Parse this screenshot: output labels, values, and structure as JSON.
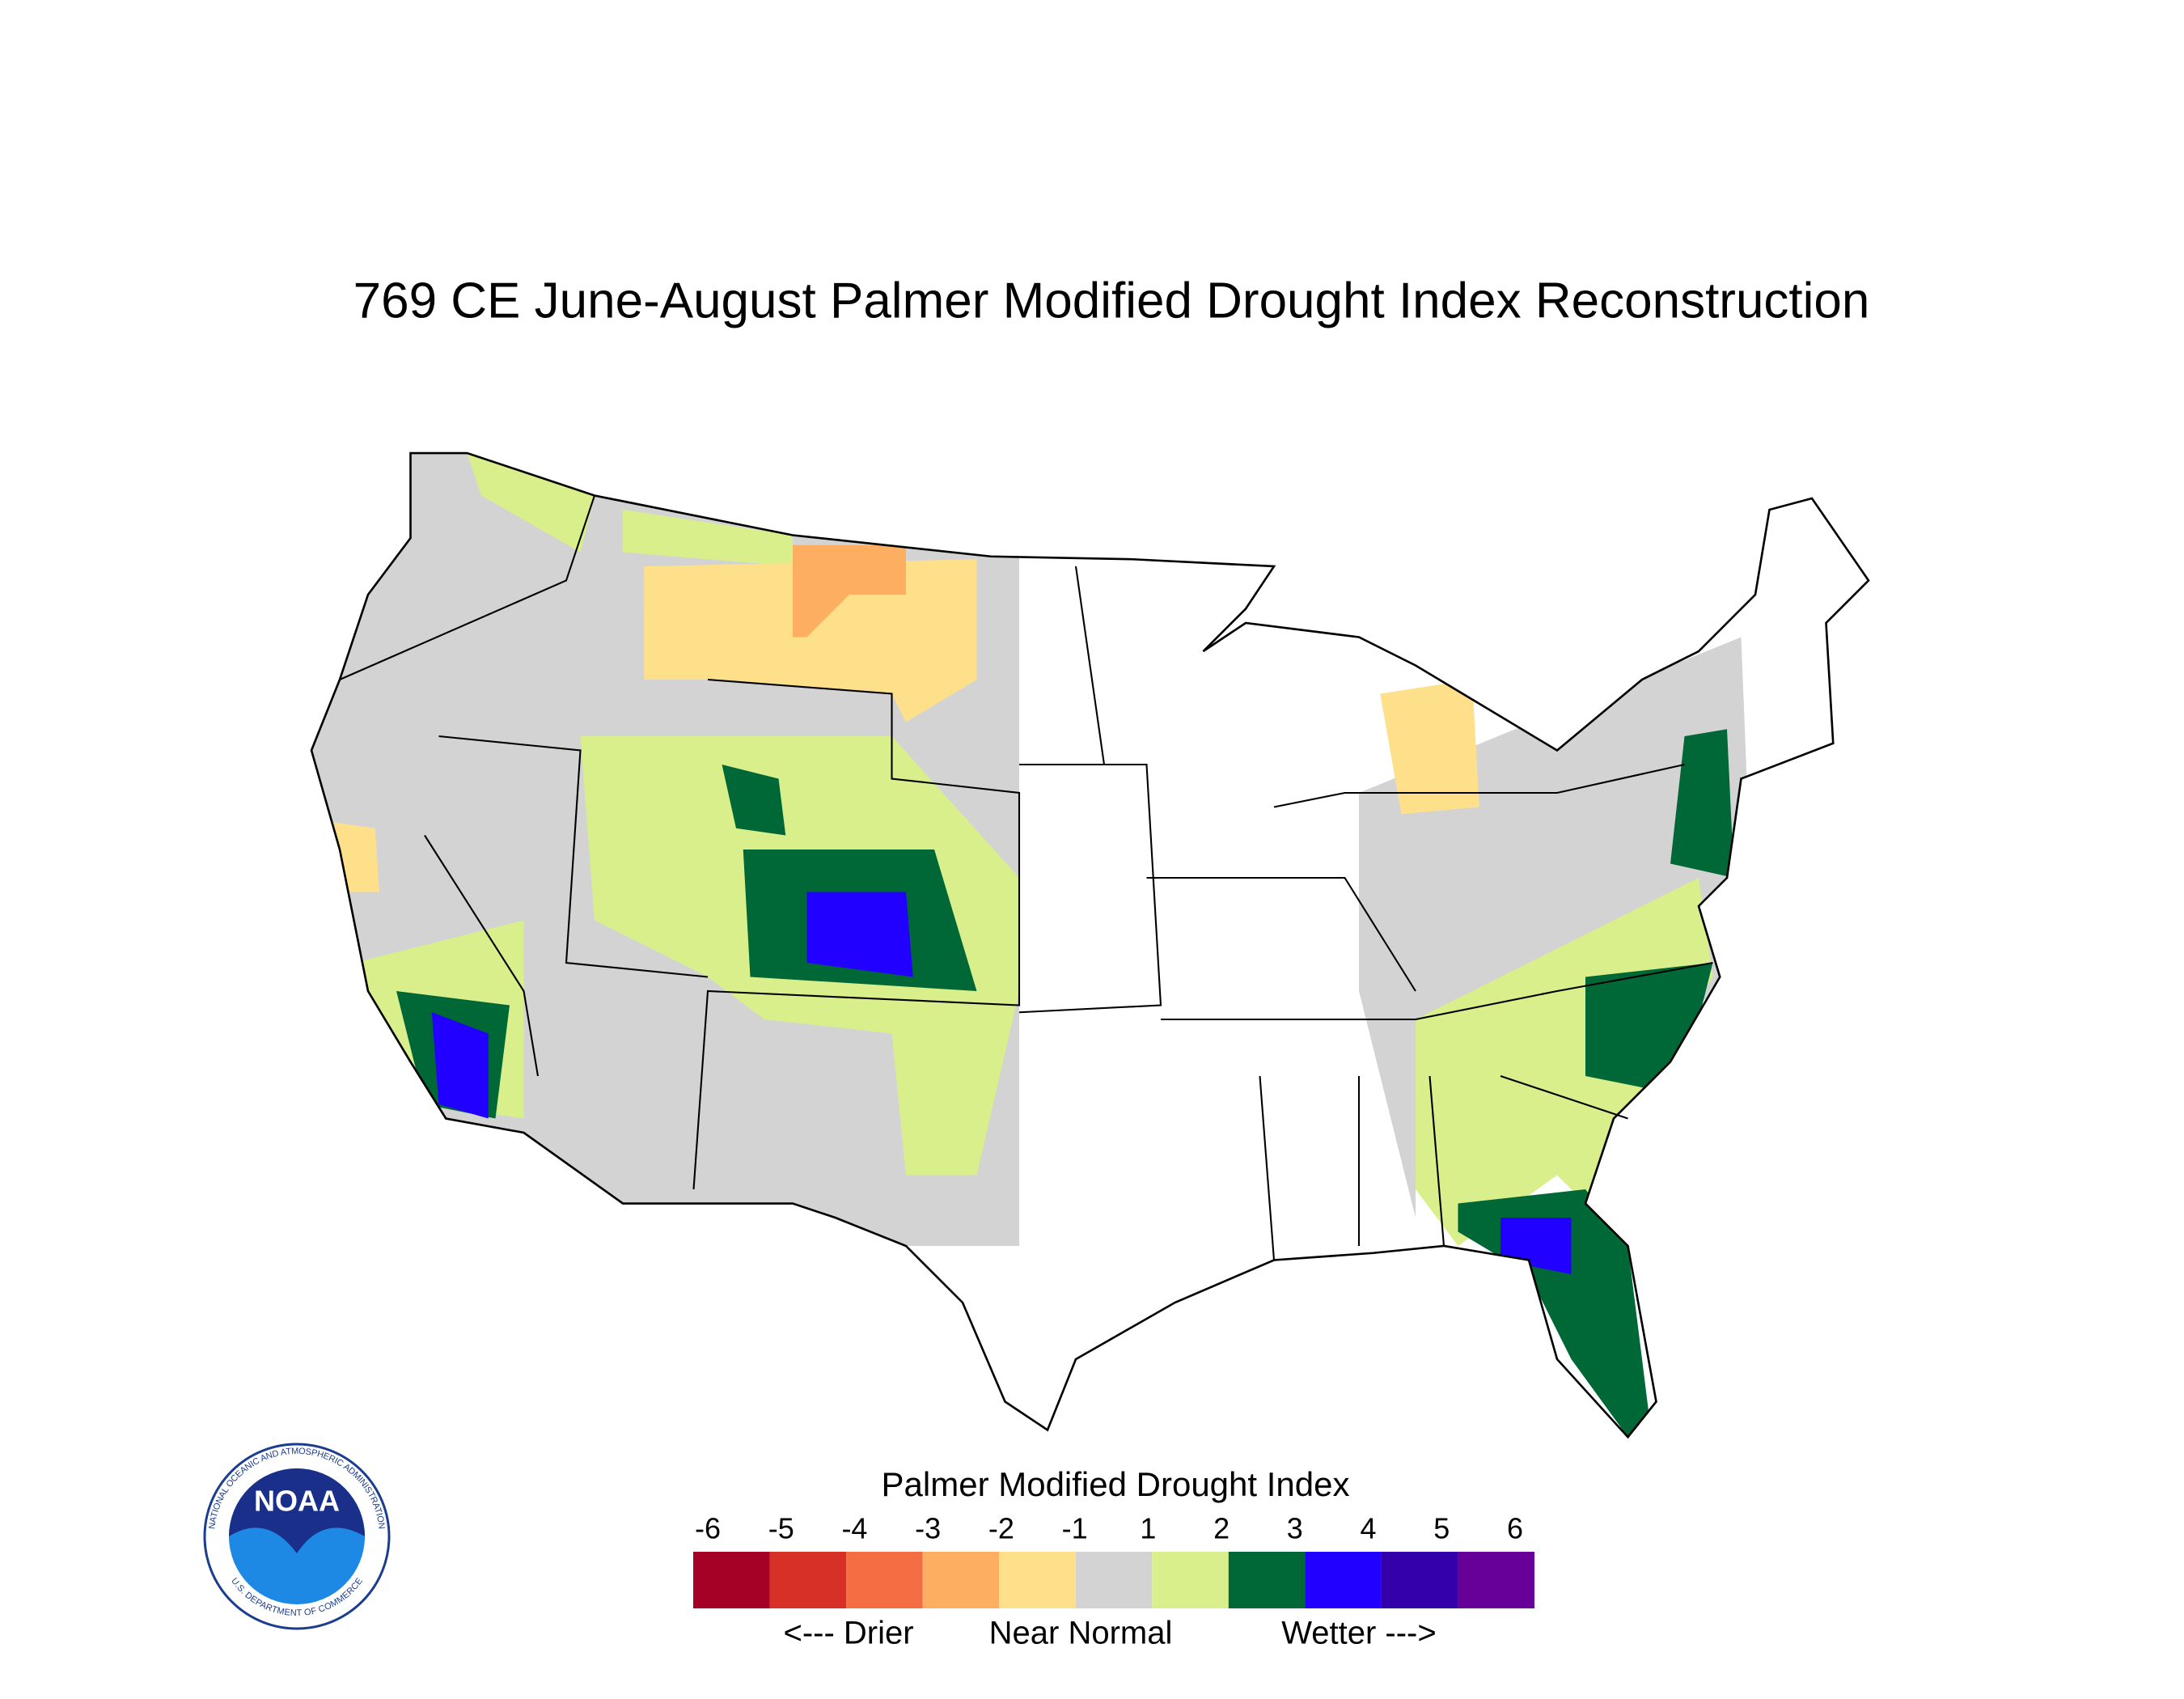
{
  "title": "769 CE  June-August  Palmer Modified Drought Index Reconstruction",
  "legend": {
    "title": "Palmer Modified Drought Index",
    "labels": [
      "-6",
      "-5",
      "-4",
      "-3",
      "-2",
      "-1",
      "1",
      "2",
      "3",
      "4",
      "5",
      "6"
    ],
    "colors": [
      "#a50026",
      "#d73027",
      "#f46d43",
      "#fdae61",
      "#fee08b",
      "#d3d3d3",
      "#d9ef8b",
      "#006837",
      "#2200ff",
      "#3300aa",
      "#660099"
    ],
    "captions": [
      "<--- Drier",
      "Near Normal",
      "Wetter --->"
    ]
  },
  "logo": {
    "name": "NOAA",
    "ring_top": "NATIONAL OCEANIC AND ATMOSPHERIC ADMINISTRATION",
    "ring_bottom": "U.S. DEPARTMENT OF COMMERCE"
  }
}
